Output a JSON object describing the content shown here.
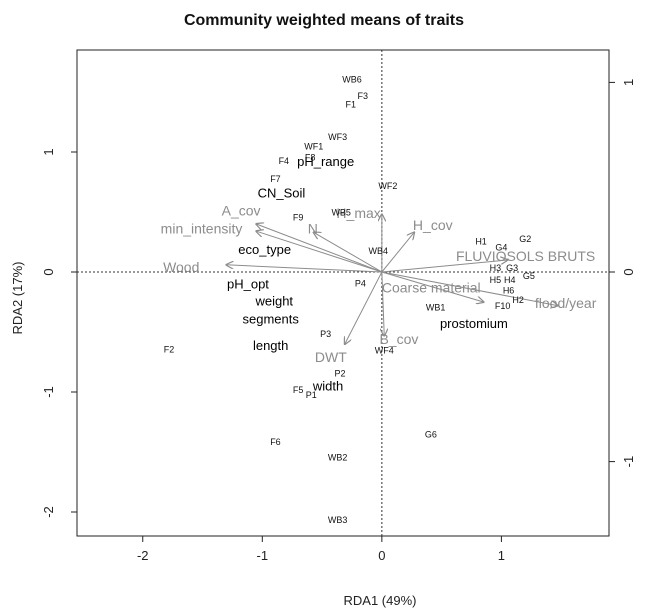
{
  "chart_data": {
    "type": "scatter",
    "title": "Community weighted means of traits",
    "xlabel": "RDA1 (49%)",
    "ylabel": "RDA2 (17%)",
    "xlim": [
      -2.55,
      1.9
    ],
    "ylim": [
      -2.2,
      1.85
    ],
    "x_ticks": [
      -2,
      -1,
      0,
      1
    ],
    "y_ticks": [
      -2,
      -1,
      0,
      1
    ],
    "right_axis_ticks": [
      {
        "label": "1",
        "y": 1.58
      },
      {
        "label": "0",
        "y": 0.0
      },
      {
        "label": "-1",
        "y": -1.58
      }
    ],
    "zero_lines": true,
    "sites": [
      {
        "label": "WB6",
        "x": -0.25,
        "y": 1.6
      },
      {
        "label": "F3",
        "x": -0.16,
        "y": 1.46
      },
      {
        "label": "F1",
        "x": -0.26,
        "y": 1.39
      },
      {
        "label": "WF3",
        "x": -0.37,
        "y": 1.12
      },
      {
        "label": "WF1",
        "x": -0.57,
        "y": 1.04
      },
      {
        "label": "F8",
        "x": -0.6,
        "y": 0.95
      },
      {
        "label": "F4",
        "x": -0.82,
        "y": 0.92
      },
      {
        "label": "F7",
        "x": -0.89,
        "y": 0.77
      },
      {
        "label": "WF2",
        "x": 0.05,
        "y": 0.71
      },
      {
        "label": "F9",
        "x": -0.7,
        "y": 0.45
      },
      {
        "label": "WB5",
        "x": -0.34,
        "y": 0.49
      },
      {
        "label": "WB4",
        "x": -0.03,
        "y": 0.17
      },
      {
        "label": "H1",
        "x": 0.83,
        "y": 0.25
      },
      {
        "label": "G2",
        "x": 1.2,
        "y": 0.27
      },
      {
        "label": "G4",
        "x": 1.0,
        "y": 0.2
      },
      {
        "label": "H3",
        "x": 0.95,
        "y": 0.03
      },
      {
        "label": "G3",
        "x": 1.09,
        "y": 0.03
      },
      {
        "label": "H5",
        "x": 0.95,
        "y": -0.07
      },
      {
        "label": "H4",
        "x": 1.07,
        "y": -0.07
      },
      {
        "label": "G5",
        "x": 1.23,
        "y": -0.04
      },
      {
        "label": "H6",
        "x": 1.06,
        "y": -0.16
      },
      {
        "label": "H2",
        "x": 1.14,
        "y": -0.24
      },
      {
        "label": "F10",
        "x": 1.01,
        "y": -0.29
      },
      {
        "label": "P4",
        "x": -0.18,
        "y": -0.1
      },
      {
        "label": "WB1",
        "x": 0.45,
        "y": -0.3
      },
      {
        "label": "P3",
        "x": -0.47,
        "y": -0.52
      },
      {
        "label": "WF4",
        "x": 0.02,
        "y": -0.66
      },
      {
        "label": "F2",
        "x": -1.78,
        "y": -0.65
      },
      {
        "label": "P2",
        "x": -0.35,
        "y": -0.85
      },
      {
        "label": "F5",
        "x": -0.7,
        "y": -0.99
      },
      {
        "label": "P1",
        "x": -0.59,
        "y": -1.03
      },
      {
        "label": "G6",
        "x": 0.41,
        "y": -1.36
      },
      {
        "label": "F6",
        "x": -0.89,
        "y": -1.42
      },
      {
        "label": "WB2",
        "x": -0.37,
        "y": -1.55
      },
      {
        "label": "WB3",
        "x": -0.37,
        "y": -2.07
      }
    ],
    "traits": [
      {
        "label": "pH_range",
        "x": -0.47,
        "y": 0.91
      },
      {
        "label": "CN_Soil",
        "x": -0.84,
        "y": 0.65
      },
      {
        "label": "eco_type",
        "x": -0.98,
        "y": 0.18
      },
      {
        "label": "pH_opt",
        "x": -1.12,
        "y": -0.11
      },
      {
        "label": "weight",
        "x": -0.9,
        "y": -0.25
      },
      {
        "label": "segments",
        "x": -0.93,
        "y": -0.4
      },
      {
        "label": "length",
        "x": -0.93,
        "y": -0.62
      },
      {
        "label": "width",
        "x": -0.45,
        "y": -0.96
      },
      {
        "label": "prostomium",
        "x": 0.77,
        "y": -0.44
      }
    ],
    "env_vectors": [
      {
        "label": "A_cov",
        "x": -1.05,
        "y": 0.4,
        "label_x": -1.34,
        "label_y": 0.47,
        "anchor": "start"
      },
      {
        "label": "min_intensity",
        "x": -1.05,
        "y": 0.34,
        "label_x": -1.85,
        "label_y": 0.32,
        "anchor": "start"
      },
      {
        "label": "N",
        "x": -0.57,
        "y": 0.33,
        "label_x": -0.62,
        "label_y": 0.32,
        "anchor": "start"
      },
      {
        "label": "Wood",
        "x": -1.3,
        "y": 0.06,
        "label_x": -1.83,
        "label_y": 0.0,
        "anchor": "start"
      },
      {
        "label": "H_max",
        "x": 0.0,
        "y": 0.48,
        "label_x": -0.38,
        "label_y": 0.45,
        "anchor": "start"
      },
      {
        "label": "H_cov",
        "x": 0.27,
        "y": 0.33,
        "label_x": 0.26,
        "label_y": 0.35,
        "anchor": "start"
      },
      {
        "label": "FLUVIOSOLS BRUTS",
        "x": 1.05,
        "y": 0.1,
        "label_x": 0.62,
        "label_y": 0.09,
        "anchor": "start"
      },
      {
        "label": "Coarse material",
        "x": 0.85,
        "y": -0.25,
        "label_x": 0.0,
        "label_y": -0.17,
        "anchor": "start"
      },
      {
        "label": "flood/year",
        "x": 1.47,
        "y": -0.28,
        "label_x": 1.28,
        "label_y": -0.3,
        "anchor": "start"
      },
      {
        "label": "B_cov",
        "x": 0.02,
        "y": -0.53,
        "label_x": -0.02,
        "label_y": -0.6,
        "anchor": "start"
      },
      {
        "label": "DWT",
        "x": -0.31,
        "y": -0.6,
        "label_x": -0.56,
        "label_y": -0.75,
        "anchor": "start"
      }
    ]
  }
}
